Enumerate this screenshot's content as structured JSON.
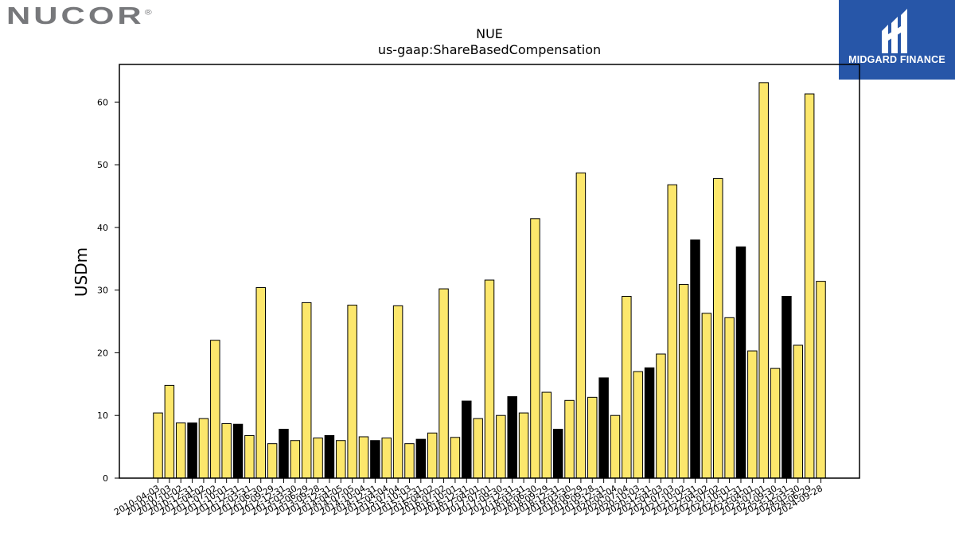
{
  "brand": {
    "logo_text": "NUCOR",
    "registered": "®"
  },
  "watermark": {
    "text": "MIDGARD FINANCE",
    "icon": "midgard-logo-icon",
    "background": "#2756a8"
  },
  "colors": {
    "bar_fill": "#fce76c",
    "bar_fill_highlight": "#000000",
    "bar_edge": "#000000"
  },
  "chart_data": {
    "type": "bar",
    "title": "NUE",
    "subtitle": "us-gaap:ShareBasedCompensation",
    "xlabel": "",
    "ylabel": "USDm",
    "ylim": [
      0,
      66
    ],
    "yticks": [
      0,
      10,
      20,
      30,
      40,
      50,
      60
    ],
    "grid": false,
    "categories": [
      "2010-04-03",
      "2010-07-03",
      "2010-10-02",
      "2010-12-31",
      "2011-04-02",
      "2011-07-02",
      "2011-10-01",
      "2011-12-31",
      "2012-03-31",
      "2012-06-30",
      "2012-09-29",
      "2012-12-31",
      "2013-03-30",
      "2013-06-29",
      "2013-09-28",
      "2013-12-31",
      "2014-04-05",
      "2014-07-05",
      "2014-10-04",
      "2014-12-31",
      "2015-04-04",
      "2015-07-04",
      "2015-10-03",
      "2015-12-31",
      "2016-04-02",
      "2016-07-02",
      "2016-10-01",
      "2016-12-31",
      "2017-04-01",
      "2017-07-01",
      "2017-09-30",
      "2017-12-31",
      "2018-03-31",
      "2018-06-30",
      "2018-09-29",
      "2018-12-31",
      "2019-03-30",
      "2019-06-29",
      "2019-09-28",
      "2019-12-31",
      "2020-04-04",
      "2020-07-04",
      "2020-10-03",
      "2020-12-31",
      "2021-04-03",
      "2021-07-03",
      "2021-10-02",
      "2021-12-31",
      "2022-04-02",
      "2022-07-02",
      "2022-10-01",
      "2022-12-31",
      "2023-04-01",
      "2023-07-01",
      "2023-09-30",
      "2023-12-31",
      "2024-03-30",
      "2024-06-29",
      "2024-09-28"
    ],
    "values": [
      10.4,
      14.8,
      8.8,
      8.8,
      9.5,
      22.0,
      8.7,
      8.6,
      6.8,
      30.4,
      5.5,
      7.8,
      6.0,
      28.0,
      6.4,
      6.8,
      6.0,
      27.6,
      6.6,
      6.0,
      6.4,
      27.5,
      5.5,
      6.2,
      7.2,
      30.2,
      6.5,
      12.3,
      9.5,
      31.6,
      10.0,
      13.0,
      10.4,
      41.4,
      13.7,
      7.8,
      12.4,
      48.7,
      12.9,
      16.0,
      10.0,
      29.0,
      17.0,
      17.6,
      19.8,
      46.8,
      30.9,
      38.0,
      26.3,
      47.8,
      25.6,
      36.9,
      20.3,
      63.1,
      17.5,
      29.0,
      21.2,
      61.3,
      31.4
    ],
    "highlight_indices": [
      3,
      7,
      11,
      15,
      19,
      23,
      27,
      31,
      35,
      39,
      43,
      47,
      51,
      55
    ]
  }
}
